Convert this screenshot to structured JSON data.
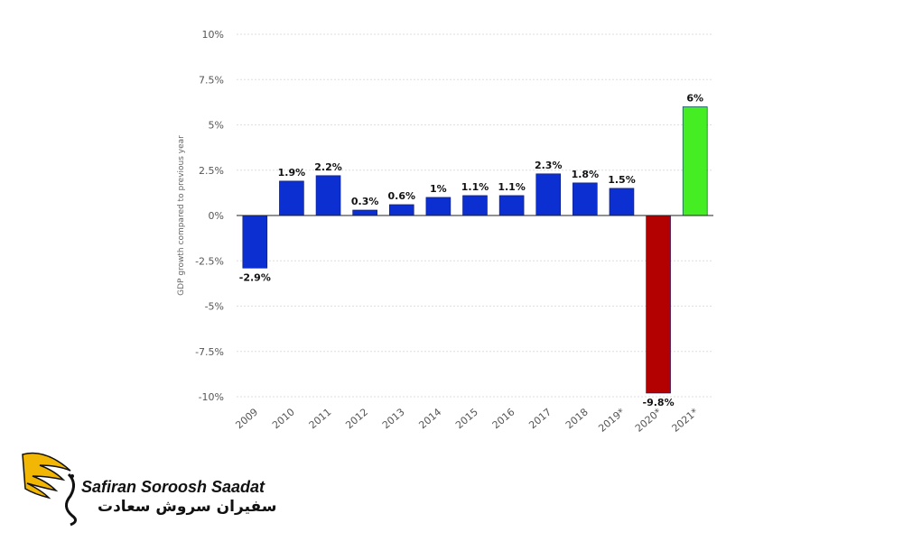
{
  "chart_data": {
    "type": "bar",
    "ylabel": "GDP growth compared to previous year",
    "xlabel": "",
    "ylim": [
      -10,
      10
    ],
    "yticks": [
      10,
      7.5,
      5,
      2.5,
      0,
      -2.5,
      -5,
      -7.5,
      -10
    ],
    "ytick_labels": [
      "10%",
      "7.5%",
      "5%",
      "2.5%",
      "0%",
      "-2.5%",
      "-5%",
      "-7.5%",
      "-10%"
    ],
    "grid": true,
    "categories": [
      "2009",
      "2010",
      "2011",
      "2012",
      "2013",
      "2014",
      "2015",
      "2016",
      "2017",
      "2018",
      "2019*",
      "2020*",
      "2021*"
    ],
    "values": [
      -2.9,
      1.9,
      2.2,
      0.3,
      0.6,
      1.0,
      1.1,
      1.1,
      2.3,
      1.8,
      1.5,
      -9.8,
      6.0
    ],
    "data_labels": [
      "-2.9%",
      "1.9%",
      "2.2%",
      "0.3%",
      "0.6%",
      "1%",
      "1.1%",
      "1.1%",
      "2.3%",
      "1.8%",
      "1.5%",
      "-9.8%",
      "6%"
    ],
    "bar_colors": [
      "#0b2fd1",
      "#0b2fd1",
      "#0b2fd1",
      "#0b2fd1",
      "#0b2fd1",
      "#0b2fd1",
      "#0b2fd1",
      "#0b2fd1",
      "#0b2fd1",
      "#0b2fd1",
      "#0b2fd1",
      "#b30000",
      "#44ee22"
    ]
  },
  "watermark": {
    "brand_en": "Safiran Soroosh Saadat",
    "brand_fa": "سفیران سروش سعادت",
    "accent_color": "#f2b705"
  }
}
